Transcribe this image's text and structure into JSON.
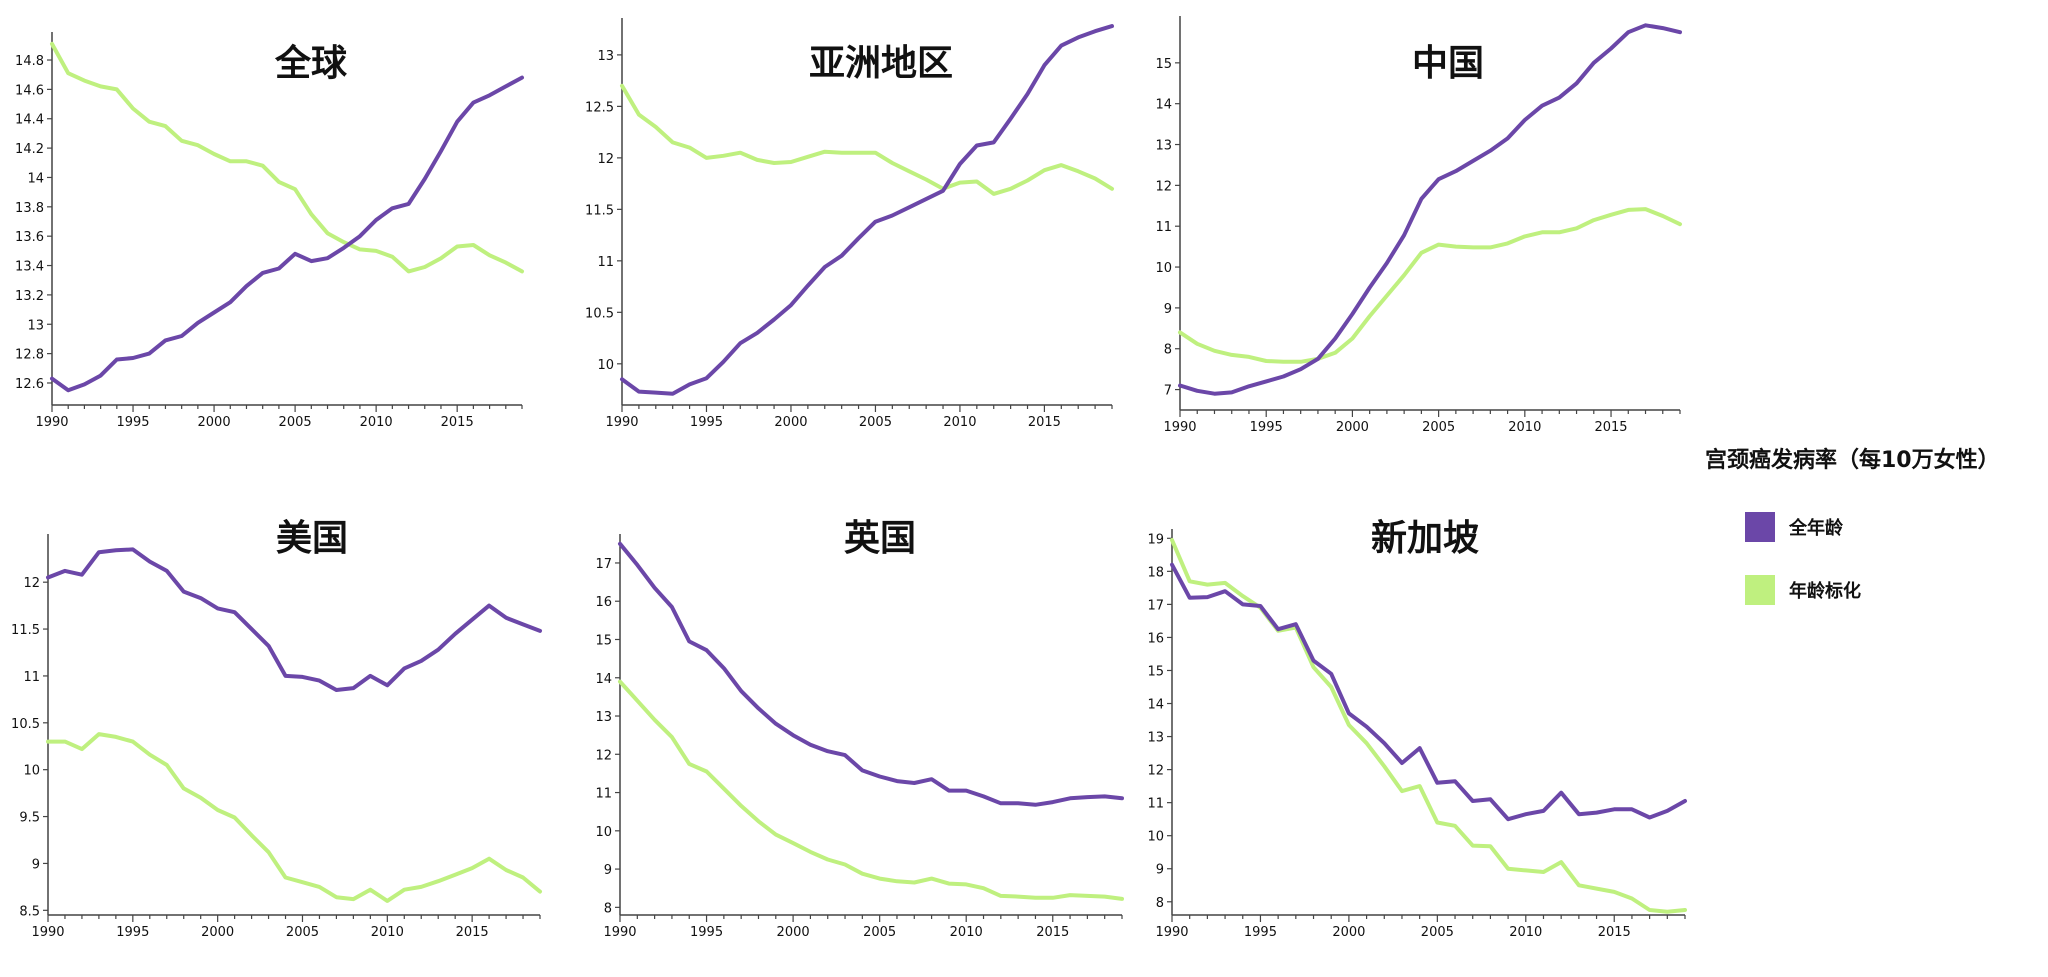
{
  "colors": {
    "all_ages": "#6b47a8",
    "age_std": "#bff07f"
  },
  "legend": {
    "title": "宫颈癌发病率（每10万女性）",
    "items": [
      {
        "label": "全年龄",
        "color": "#6b47a8"
      },
      {
        "label": "年龄标化",
        "color": "#bff07f"
      }
    ]
  },
  "chart_data": [
    {
      "type": "line",
      "title": "全球",
      "x": [
        1990,
        1991,
        1992,
        1993,
        1994,
        1995,
        1996,
        1997,
        1998,
        1999,
        2000,
        2001,
        2002,
        2003,
        2004,
        2005,
        2006,
        2007,
        2008,
        2009,
        2010,
        2011,
        2012,
        2013,
        2014,
        2015,
        2016,
        2017,
        2018,
        2019
      ],
      "xticks": [
        1990,
        1995,
        2000,
        2005,
        2010,
        2015
      ],
      "ylim": [
        12.45,
        14.95
      ],
      "yticks": [
        12.6,
        12.8,
        13,
        13.2,
        13.4,
        13.6,
        13.8,
        14,
        14.2,
        14.4,
        14.6,
        14.8
      ],
      "series": [
        {
          "key": "all_ages",
          "values": [
            12.63,
            12.55,
            12.59,
            12.65,
            12.76,
            12.77,
            12.8,
            12.89,
            12.92,
            13.01,
            13.08,
            13.15,
            13.26,
            13.35,
            13.38,
            13.48,
            13.43,
            13.45,
            13.52,
            13.6,
            13.71,
            13.79,
            13.82,
            13.99,
            14.18,
            14.38,
            14.51,
            14.56,
            14.62,
            14.68
          ]
        },
        {
          "key": "age_std",
          "values": [
            14.91,
            14.71,
            14.66,
            14.62,
            14.6,
            14.47,
            14.38,
            14.35,
            14.25,
            14.22,
            14.16,
            14.11,
            14.11,
            14.08,
            13.97,
            13.92,
            13.75,
            13.62,
            13.56,
            13.51,
            13.5,
            13.46,
            13.36,
            13.39,
            13.45,
            13.53,
            13.54,
            13.47,
            13.42,
            13.36
          ]
        }
      ]
    },
    {
      "type": "line",
      "title": "亚洲地区",
      "x": [
        1990,
        1991,
        1992,
        1993,
        1994,
        1995,
        1996,
        1997,
        1998,
        1999,
        2000,
        2001,
        2002,
        2003,
        2004,
        2005,
        2006,
        2007,
        2008,
        2009,
        2010,
        2011,
        2012,
        2013,
        2014,
        2015,
        2016,
        2017,
        2018,
        2019
      ],
      "xticks": [
        1990,
        1995,
        2000,
        2005,
        2010,
        2015
      ],
      "ylim": [
        9.6,
        13.3
      ],
      "yticks": [
        10,
        10.5,
        11,
        11.5,
        12,
        12.5,
        13
      ],
      "series": [
        {
          "key": "all_ages",
          "values": [
            9.85,
            9.73,
            9.72,
            9.71,
            9.8,
            9.86,
            10.02,
            10.2,
            10.3,
            10.43,
            10.57,
            10.76,
            10.94,
            11.05,
            11.22,
            11.38,
            11.44,
            11.52,
            11.6,
            11.68,
            11.94,
            12.12,
            12.15,
            12.38,
            12.62,
            12.9,
            13.09,
            13.17,
            13.23,
            13.28
          ]
        },
        {
          "key": "age_std",
          "values": [
            12.7,
            12.42,
            12.3,
            12.15,
            12.1,
            12.0,
            12.02,
            12.05,
            11.98,
            11.95,
            11.96,
            12.01,
            12.06,
            12.05,
            12.05,
            12.05,
            11.95,
            11.87,
            11.79,
            11.7,
            11.76,
            11.77,
            11.65,
            11.7,
            11.78,
            11.88,
            11.93,
            11.87,
            11.8,
            11.7
          ]
        }
      ]
    },
    {
      "type": "line",
      "title": "中国",
      "x": [
        1990,
        1991,
        1992,
        1993,
        1994,
        1995,
        1996,
        1997,
        1998,
        1999,
        2000,
        2001,
        2002,
        2003,
        2004,
        2005,
        2006,
        2007,
        2008,
        2009,
        2010,
        2011,
        2012,
        2013,
        2014,
        2015,
        2016,
        2017,
        2018,
        2019
      ],
      "xticks": [
        1990,
        1995,
        2000,
        2005,
        2010,
        2015
      ],
      "ylim": [
        6.5,
        16.0
      ],
      "yticks": [
        7,
        8,
        9,
        10,
        11,
        12,
        13,
        14,
        15
      ],
      "series": [
        {
          "key": "all_ages",
          "values": [
            7.1,
            6.97,
            6.9,
            6.93,
            7.08,
            7.2,
            7.32,
            7.5,
            7.75,
            8.25,
            8.85,
            9.5,
            10.1,
            10.78,
            11.67,
            12.15,
            12.35,
            12.6,
            12.85,
            13.15,
            13.6,
            13.95,
            14.15,
            14.5,
            15.0,
            15.35,
            15.75,
            15.92,
            15.85,
            15.75
          ]
        },
        {
          "key": "age_std",
          "values": [
            8.4,
            8.12,
            7.95,
            7.85,
            7.8,
            7.7,
            7.68,
            7.68,
            7.75,
            7.9,
            8.25,
            8.8,
            9.3,
            9.8,
            10.35,
            10.55,
            10.5,
            10.48,
            10.48,
            10.58,
            10.75,
            10.85,
            10.85,
            10.95,
            11.15,
            11.28,
            11.4,
            11.42,
            11.25,
            11.05
          ]
        }
      ]
    },
    {
      "type": "line",
      "title": "美国",
      "x": [
        1990,
        1991,
        1992,
        1993,
        1994,
        1995,
        1996,
        1997,
        1998,
        1999,
        2000,
        2001,
        2002,
        2003,
        2004,
        2005,
        2006,
        2007,
        2008,
        2009,
        2010,
        2011,
        2012,
        2013,
        2014,
        2015,
        2016,
        2017,
        2018,
        2019
      ],
      "xticks": [
        1990,
        1995,
        2000,
        2005,
        2010,
        2015
      ],
      "ylim": [
        8.45,
        12.45
      ],
      "yticks": [
        8.5,
        9,
        9.5,
        10,
        10.5,
        11,
        11.5,
        12
      ],
      "series": [
        {
          "key": "all_ages",
          "values": [
            12.05,
            12.12,
            12.08,
            12.32,
            12.34,
            12.35,
            12.22,
            12.12,
            11.9,
            11.83,
            11.72,
            11.68,
            11.5,
            11.32,
            11.0,
            10.99,
            10.95,
            10.85,
            10.87,
            11.0,
            10.9,
            11.08,
            11.16,
            11.28,
            11.45,
            11.6,
            11.75,
            11.62,
            11.55,
            11.48
          ]
        },
        {
          "key": "age_std",
          "values": [
            10.3,
            10.3,
            10.22,
            10.38,
            10.35,
            10.3,
            10.16,
            10.05,
            9.8,
            9.7,
            9.57,
            9.49,
            9.3,
            9.12,
            8.85,
            8.8,
            8.75,
            8.64,
            8.62,
            8.72,
            8.6,
            8.72,
            8.75,
            8.81,
            8.88,
            8.95,
            9.05,
            8.93,
            8.85,
            8.7
          ]
        }
      ]
    },
    {
      "type": "line",
      "title": "英国",
      "x": [
        1990,
        1991,
        1992,
        1993,
        1994,
        1995,
        1996,
        1997,
        1998,
        1999,
        2000,
        2001,
        2002,
        2003,
        2004,
        2005,
        2006,
        2007,
        2008,
        2009,
        2010,
        2011,
        2012,
        2013,
        2014,
        2015,
        2016,
        2017,
        2018,
        2019
      ],
      "xticks": [
        1990,
        1995,
        2000,
        2005,
        2010,
        2015
      ],
      "ylim": [
        7.8,
        17.6
      ],
      "yticks": [
        8,
        9,
        10,
        11,
        12,
        13,
        14,
        15,
        16,
        17
      ],
      "series": [
        {
          "key": "all_ages",
          "values": [
            17.5,
            16.95,
            16.35,
            15.85,
            14.95,
            14.72,
            14.25,
            13.65,
            13.2,
            12.8,
            12.5,
            12.25,
            12.08,
            11.98,
            11.58,
            11.42,
            11.3,
            11.25,
            11.35,
            11.05,
            11.05,
            10.9,
            10.72,
            10.72,
            10.68,
            10.75,
            10.85,
            10.88,
            10.9,
            10.85
          ]
        },
        {
          "key": "age_std",
          "values": [
            13.9,
            13.4,
            12.9,
            12.45,
            11.75,
            11.55,
            11.1,
            10.65,
            10.25,
            9.9,
            9.68,
            9.45,
            9.25,
            9.12,
            8.88,
            8.75,
            8.68,
            8.65,
            8.75,
            8.62,
            8.6,
            8.5,
            8.3,
            8.28,
            8.25,
            8.25,
            8.32,
            8.3,
            8.28,
            8.22
          ]
        }
      ]
    },
    {
      "type": "line",
      "title": "新加坡",
      "x": [
        1990,
        1991,
        1992,
        1993,
        1994,
        1995,
        1996,
        1997,
        1998,
        1999,
        2000,
        2001,
        2002,
        2003,
        2004,
        2005,
        2006,
        2007,
        2008,
        2009,
        2010,
        2011,
        2012,
        2013,
        2014,
        2015,
        2016,
        2017,
        2018,
        2019
      ],
      "xticks": [
        1990,
        1995,
        2000,
        2005,
        2010,
        2015
      ],
      "ylim": [
        7.6,
        19.1
      ],
      "yticks": [
        8,
        9,
        10,
        11,
        12,
        13,
        14,
        15,
        16,
        17,
        18,
        19
      ],
      "series": [
        {
          "key": "all_ages",
          "values": [
            18.2,
            17.2,
            17.22,
            17.4,
            17.0,
            16.95,
            16.25,
            16.4,
            15.3,
            14.9,
            13.7,
            13.3,
            12.8,
            12.2,
            12.65,
            11.6,
            11.65,
            11.05,
            11.1,
            10.5,
            10.65,
            10.75,
            11.3,
            10.65,
            10.7,
            10.8,
            10.8,
            10.55,
            10.75,
            11.05
          ]
        },
        {
          "key": "age_std",
          "values": [
            18.95,
            17.7,
            17.6,
            17.65,
            17.25,
            16.9,
            16.2,
            16.3,
            15.1,
            14.5,
            13.35,
            12.8,
            12.1,
            11.35,
            11.5,
            10.4,
            10.3,
            9.7,
            9.68,
            9.0,
            8.95,
            8.9,
            9.2,
            8.5,
            8.4,
            8.3,
            8.1,
            7.75,
            7.7,
            7.75
          ]
        }
      ]
    }
  ]
}
